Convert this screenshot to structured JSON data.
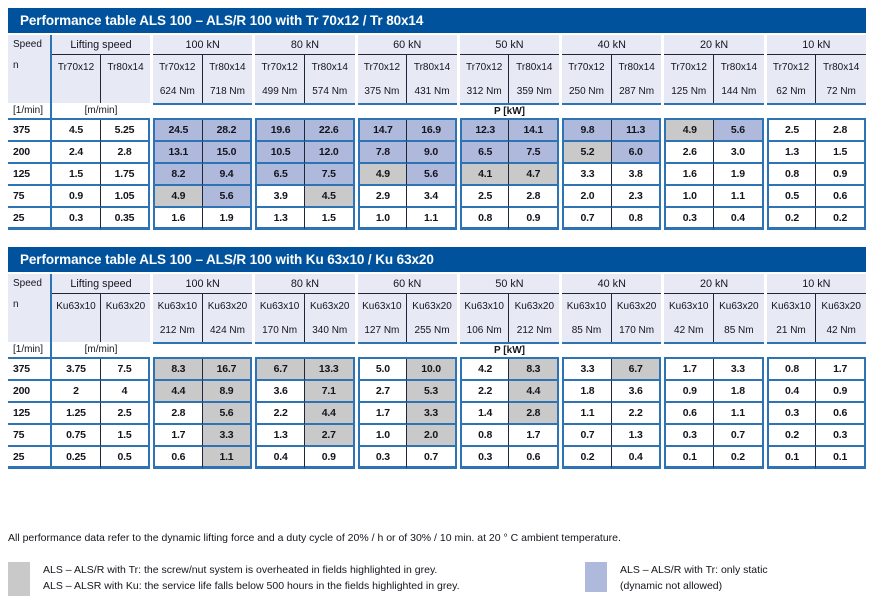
{
  "colors": {
    "title_bar": "#00529C",
    "line_blue": "#2E74B5",
    "highlight_blue": "#AEB9DC",
    "highlight_grey": "#C9C9C9",
    "header_bg": "#E7EAF5"
  },
  "footnote": "All performance data refer to the dynamic lifting force and a duty cycle of 20% / h or of 30% / 10 min. at 20 ° C ambient temperature.",
  "legend_grey": [
    "ALS – ALS/R with Tr: the screw/nut system is overheated in fields highlighted in grey.",
    "ALS – ALSR with Ku: the service life falls below 500 hours in the fields highlighted in grey."
  ],
  "legend_blue": [
    "ALS – ALS/R with Tr: only static",
    "(dynamic not allowed)"
  ],
  "tables": [
    {
      "title": "Performance table ALS 100 – ALS/R 100 with Tr 70x12 / Tr 80x14",
      "speed_label": "Speed",
      "speed_symbol": "n",
      "speed_unit": "[1/min]",
      "lifting_label": "Lifting speed",
      "lifting_unit": "[m/min]",
      "power_label": "P [kW]",
      "screws": [
        "Tr70x12",
        "Tr80x14"
      ],
      "groups": [
        {
          "load": "100 kN",
          "torques": [
            "624 Nm",
            "718 Nm"
          ]
        },
        {
          "load": "80 kN",
          "torques": [
            "499 Nm",
            "574 Nm"
          ]
        },
        {
          "load": "60 kN",
          "torques": [
            "375 Nm",
            "431 Nm"
          ]
        },
        {
          "load": "50 kN",
          "torques": [
            "312 Nm",
            "359 Nm"
          ]
        },
        {
          "load": "40 kN",
          "torques": [
            "250 Nm",
            "287 Nm"
          ]
        },
        {
          "load": "20 kN",
          "torques": [
            "125 Nm",
            "144 Nm"
          ]
        },
        {
          "load": "10 kN",
          "torques": [
            "62 Nm",
            "72 Nm"
          ]
        }
      ],
      "rows": [
        {
          "speed": "375",
          "lift": [
            "4.5",
            "5.25"
          ],
          "cells": [
            [
              "24.5",
              "b"
            ],
            [
              "28.2",
              "b"
            ],
            [
              "19.6",
              "b"
            ],
            [
              "22.6",
              "b"
            ],
            [
              "14.7",
              "b"
            ],
            [
              "16.9",
              "b"
            ],
            [
              "12.3",
              "b"
            ],
            [
              "14.1",
              "b"
            ],
            [
              "9.8",
              "b"
            ],
            [
              "11.3",
              "b"
            ],
            [
              "4.9",
              "g"
            ],
            [
              "5.6",
              "b"
            ],
            [
              "2.5",
              "w"
            ],
            [
              "2.8",
              "w"
            ]
          ]
        },
        {
          "speed": "200",
          "lift": [
            "2.4",
            "2.8"
          ],
          "cells": [
            [
              "13.1",
              "b"
            ],
            [
              "15.0",
              "b"
            ],
            [
              "10.5",
              "b"
            ],
            [
              "12.0",
              "b"
            ],
            [
              "7.8",
              "b"
            ],
            [
              "9.0",
              "b"
            ],
            [
              "6.5",
              "b"
            ],
            [
              "7.5",
              "b"
            ],
            [
              "5.2",
              "g"
            ],
            [
              "6.0",
              "b"
            ],
            [
              "2.6",
              "w"
            ],
            [
              "3.0",
              "w"
            ],
            [
              "1.3",
              "w"
            ],
            [
              "1.5",
              "w"
            ]
          ]
        },
        {
          "speed": "125",
          "lift": [
            "1.5",
            "1.75"
          ],
          "cells": [
            [
              "8.2",
              "b"
            ],
            [
              "9.4",
              "b"
            ],
            [
              "6.5",
              "b"
            ],
            [
              "7.5",
              "b"
            ],
            [
              "4.9",
              "g"
            ],
            [
              "5.6",
              "b"
            ],
            [
              "4.1",
              "g"
            ],
            [
              "4.7",
              "g"
            ],
            [
              "3.3",
              "w"
            ],
            [
              "3.8",
              "w"
            ],
            [
              "1.6",
              "w"
            ],
            [
              "1.9",
              "w"
            ],
            [
              "0.8",
              "w"
            ],
            [
              "0.9",
              "w"
            ]
          ]
        },
        {
          "speed": "75",
          "lift": [
            "0.9",
            "1.05"
          ],
          "cells": [
            [
              "4.9",
              "g"
            ],
            [
              "5.6",
              "b"
            ],
            [
              "3.9",
              "w"
            ],
            [
              "4.5",
              "g"
            ],
            [
              "2.9",
              "w"
            ],
            [
              "3.4",
              "w"
            ],
            [
              "2.5",
              "w"
            ],
            [
              "2.8",
              "w"
            ],
            [
              "2.0",
              "w"
            ],
            [
              "2.3",
              "w"
            ],
            [
              "1.0",
              "w"
            ],
            [
              "1.1",
              "w"
            ],
            [
              "0.5",
              "w"
            ],
            [
              "0.6",
              "w"
            ]
          ]
        },
        {
          "speed": "25",
          "lift": [
            "0.3",
            "0.35"
          ],
          "cells": [
            [
              "1.6",
              "w"
            ],
            [
              "1.9",
              "w"
            ],
            [
              "1.3",
              "w"
            ],
            [
              "1.5",
              "w"
            ],
            [
              "1.0",
              "w"
            ],
            [
              "1.1",
              "w"
            ],
            [
              "0.8",
              "w"
            ],
            [
              "0.9",
              "w"
            ],
            [
              "0.7",
              "w"
            ],
            [
              "0.8",
              "w"
            ],
            [
              "0.3",
              "w"
            ],
            [
              "0.4",
              "w"
            ],
            [
              "0.2",
              "w"
            ],
            [
              "0.2",
              "w"
            ]
          ]
        }
      ]
    },
    {
      "title": "Performance table ALS 100 – ALS/R 100 with Ku 63x10 / Ku 63x20",
      "speed_label": "Speed",
      "speed_symbol": "n",
      "speed_unit": "[1/min]",
      "lifting_label": "Lifting speed",
      "lifting_unit": "[m/min]",
      "power_label": "P [kW]",
      "screws": [
        "Ku63x10",
        "Ku63x20"
      ],
      "groups": [
        {
          "load": "100 kN",
          "torques": [
            "212 Nm",
            "424 Nm"
          ]
        },
        {
          "load": "80 kN",
          "torques": [
            "170 Nm",
            "340 Nm"
          ]
        },
        {
          "load": "60 kN",
          "torques": [
            "127 Nm",
            "255 Nm"
          ]
        },
        {
          "load": "50 kN",
          "torques": [
            "106 Nm",
            "212 Nm"
          ]
        },
        {
          "load": "40 kN",
          "torques": [
            "85 Nm",
            "170 Nm"
          ]
        },
        {
          "load": "20 kN",
          "torques": [
            "42 Nm",
            "85 Nm"
          ]
        },
        {
          "load": "10 kN",
          "torques": [
            "21 Nm",
            "42 Nm"
          ]
        }
      ],
      "rows": [
        {
          "speed": "375",
          "lift": [
            "3.75",
            "7.5"
          ],
          "cells": [
            [
              "8.3",
              "g"
            ],
            [
              "16.7",
              "g"
            ],
            [
              "6.7",
              "g"
            ],
            [
              "13.3",
              "g"
            ],
            [
              "5.0",
              "w"
            ],
            [
              "10.0",
              "g"
            ],
            [
              "4.2",
              "w"
            ],
            [
              "8.3",
              "g"
            ],
            [
              "3.3",
              "w"
            ],
            [
              "6.7",
              "g"
            ],
            [
              "1.7",
              "w"
            ],
            [
              "3.3",
              "w"
            ],
            [
              "0.8",
              "w"
            ],
            [
              "1.7",
              "w"
            ]
          ]
        },
        {
          "speed": "200",
          "lift": [
            "2",
            "4"
          ],
          "cells": [
            [
              "4.4",
              "g"
            ],
            [
              "8.9",
              "g"
            ],
            [
              "3.6",
              "w"
            ],
            [
              "7.1",
              "g"
            ],
            [
              "2.7",
              "w"
            ],
            [
              "5.3",
              "g"
            ],
            [
              "2.2",
              "w"
            ],
            [
              "4.4",
              "g"
            ],
            [
              "1.8",
              "w"
            ],
            [
              "3.6",
              "w"
            ],
            [
              "0.9",
              "w"
            ],
            [
              "1.8",
              "w"
            ],
            [
              "0.4",
              "w"
            ],
            [
              "0.9",
              "w"
            ]
          ]
        },
        {
          "speed": "125",
          "lift": [
            "1.25",
            "2.5"
          ],
          "cells": [
            [
              "2.8",
              "w"
            ],
            [
              "5.6",
              "g"
            ],
            [
              "2.2",
              "w"
            ],
            [
              "4.4",
              "g"
            ],
            [
              "1.7",
              "w"
            ],
            [
              "3.3",
              "g"
            ],
            [
              "1.4",
              "w"
            ],
            [
              "2.8",
              "g"
            ],
            [
              "1.1",
              "w"
            ],
            [
              "2.2",
              "w"
            ],
            [
              "0.6",
              "w"
            ],
            [
              "1.1",
              "w"
            ],
            [
              "0.3",
              "w"
            ],
            [
              "0.6",
              "w"
            ]
          ]
        },
        {
          "speed": "75",
          "lift": [
            "0.75",
            "1.5"
          ],
          "cells": [
            [
              "1.7",
              "w"
            ],
            [
              "3.3",
              "g"
            ],
            [
              "1.3",
              "w"
            ],
            [
              "2.7",
              "g"
            ],
            [
              "1.0",
              "w"
            ],
            [
              "2.0",
              "g"
            ],
            [
              "0.8",
              "w"
            ],
            [
              "1.7",
              "w"
            ],
            [
              "0.7",
              "w"
            ],
            [
              "1.3",
              "w"
            ],
            [
              "0.3",
              "w"
            ],
            [
              "0.7",
              "w"
            ],
            [
              "0.2",
              "w"
            ],
            [
              "0.3",
              "w"
            ]
          ]
        },
        {
          "speed": "25",
          "lift": [
            "0.25",
            "0.5"
          ],
          "cells": [
            [
              "0.6",
              "w"
            ],
            [
              "1.1",
              "g"
            ],
            [
              "0.4",
              "w"
            ],
            [
              "0.9",
              "w"
            ],
            [
              "0.3",
              "w"
            ],
            [
              "0.7",
              "w"
            ],
            [
              "0.3",
              "w"
            ],
            [
              "0.6",
              "w"
            ],
            [
              "0.2",
              "w"
            ],
            [
              "0.4",
              "w"
            ],
            [
              "0.1",
              "w"
            ],
            [
              "0.2",
              "w"
            ],
            [
              "0.1",
              "w"
            ],
            [
              "0.1",
              "w"
            ]
          ]
        }
      ]
    }
  ]
}
